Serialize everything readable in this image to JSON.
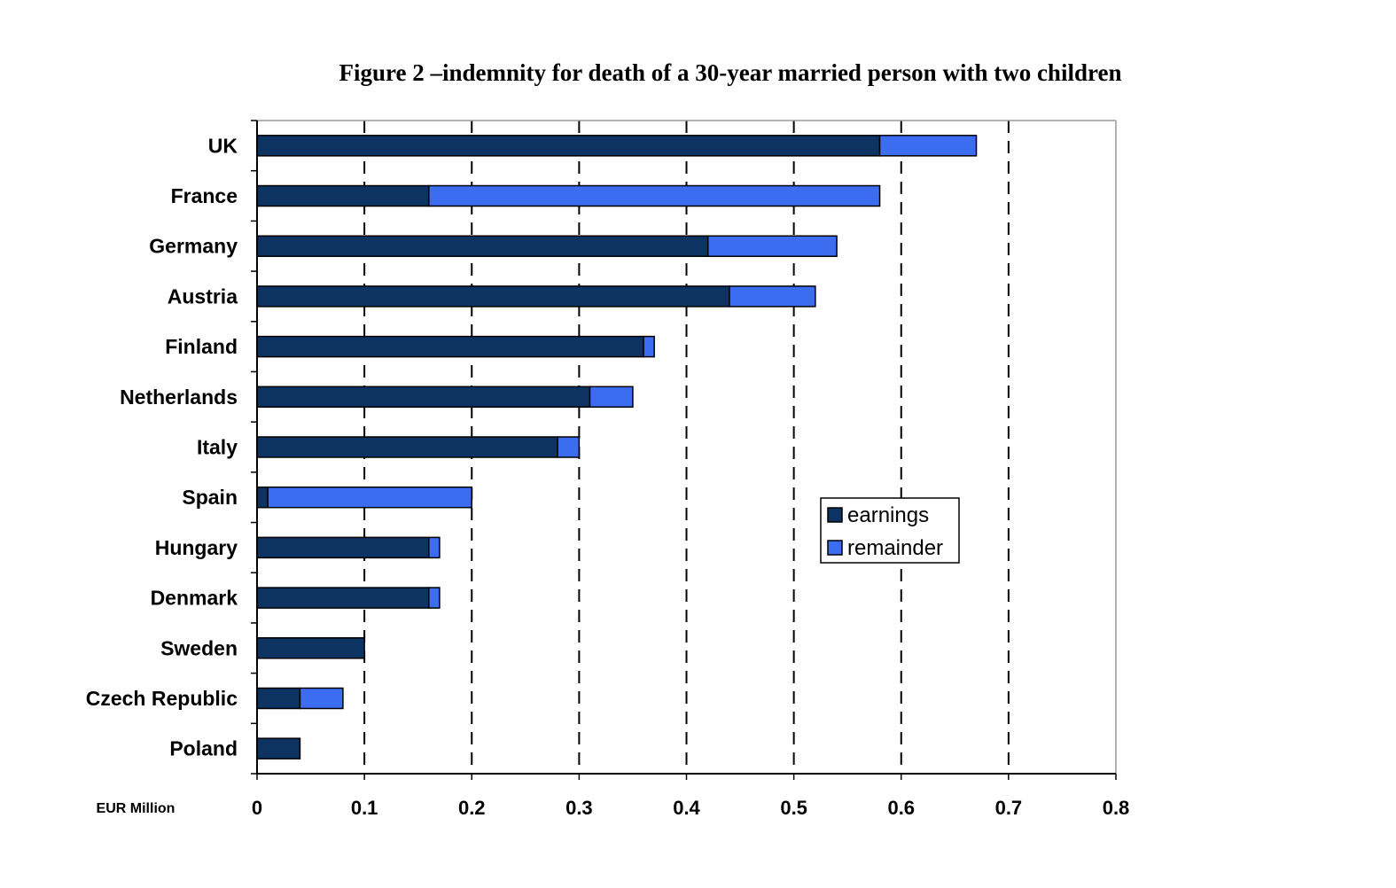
{
  "chart_data": {
    "type": "bar",
    "orientation": "horizontal",
    "stacked": true,
    "title": "Figure 2 –indemnity for death of a 30-year married person with two children",
    "xlabel": "EUR Million",
    "ylabel": "",
    "xlim": [
      0,
      0.8
    ],
    "x_ticks": [
      "0",
      "0.1",
      "0.2",
      "0.3",
      "0.4",
      "0.5",
      "0.6",
      "0.7",
      "0.8"
    ],
    "grid": "vertical dashed",
    "legend_position": "center-right",
    "categories": [
      "UK",
      "France",
      "Germany",
      "Austria",
      "Finland",
      "Netherlands",
      "Italy",
      "Spain",
      "Hungary",
      "Denmark",
      "Sweden",
      "Czech Republic",
      "Poland"
    ],
    "series": [
      {
        "name": "earnings",
        "color": "#0d3362",
        "values": [
          0.58,
          0.16,
          0.42,
          0.44,
          0.36,
          0.31,
          0.28,
          0.01,
          0.16,
          0.16,
          0.1,
          0.04,
          0.04
        ]
      },
      {
        "name": "remainder",
        "color": "#3c6cf0",
        "values": [
          0.09,
          0.42,
          0.12,
          0.08,
          0.01,
          0.04,
          0.02,
          0.19,
          0.01,
          0.01,
          0.0,
          0.04,
          0.0
        ]
      }
    ]
  }
}
